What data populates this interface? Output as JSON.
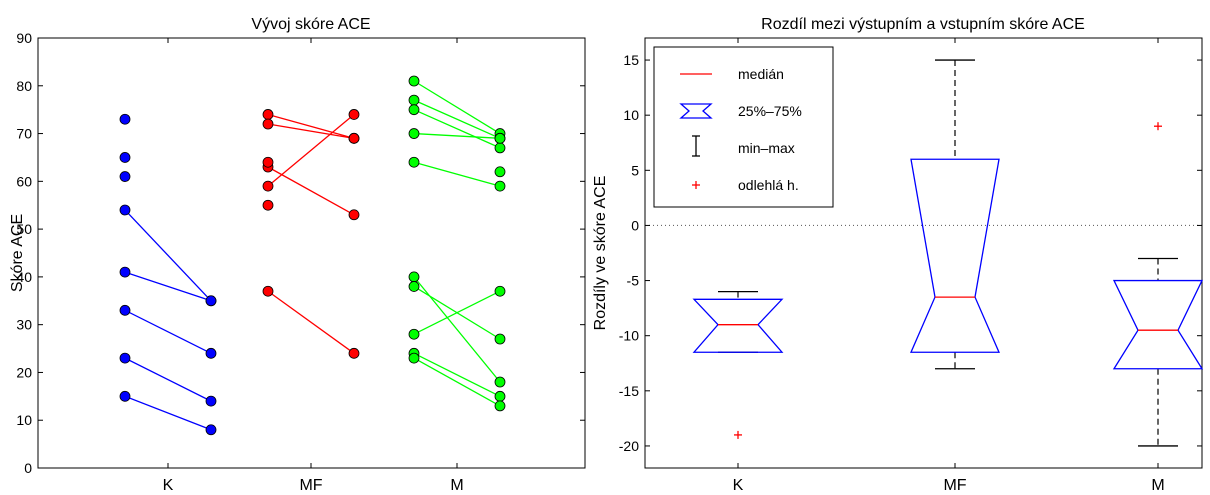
{
  "chart_data": [
    {
      "type": "scatter",
      "title": "Vývoj skóre ACE",
      "ylabel": "Skóre ACE",
      "xlabel": "",
      "ylim": [
        0,
        90
      ],
      "yticks": [
        "0",
        "10",
        "20",
        "30",
        "40",
        "50",
        "60",
        "70",
        "80",
        "90"
      ],
      "categories": [
        "K",
        "MF",
        "M"
      ],
      "series": [
        {
          "group": "K",
          "color": "#0000ff",
          "pairs": [
            [
              54,
              35
            ],
            [
              41,
              35
            ],
            [
              33,
              24
            ],
            [
              23,
              14
            ],
            [
              15,
              8
            ]
          ],
          "unpaired_before": [
            73,
            65,
            61
          ]
        },
        {
          "group": "MF",
          "color": "#ff0000",
          "pairs": [
            [
              74,
              69
            ],
            [
              72,
              69
            ],
            [
              59,
              74
            ],
            [
              63,
              53
            ],
            [
              37,
              24
            ]
          ],
          "unpaired_before": [
            64,
            55
          ],
          "unpaired_after": []
        },
        {
          "group": "M",
          "color": "#00ff00",
          "pairs": [
            [
              81,
              70
            ],
            [
              77,
              69
            ],
            [
              75,
              67
            ],
            [
              70,
              69
            ],
            [
              64,
              59
            ],
            [
              40,
              18
            ],
            [
              38,
              27
            ],
            [
              28,
              37
            ],
            [
              24,
              15
            ],
            [
              23,
              13
            ]
          ],
          "unpaired_after": [
            62
          ]
        }
      ]
    },
    {
      "type": "box",
      "title": "Rozdíl mezi výstupním a vstupním skóre ACE",
      "ylabel": "Rozdíly ve skóre ACE",
      "xlabel": "",
      "ylim": [
        -22,
        17
      ],
      "yticks": [
        "15",
        "10",
        "5",
        "0",
        "-5",
        "-10",
        "-15",
        "-20"
      ],
      "categories": [
        "K",
        "MF",
        "M"
      ],
      "boxes": [
        {
          "name": "K",
          "min": -11.5,
          "q1": -11.5,
          "median": -9,
          "q3": -6.7,
          "max": -6,
          "outliers": [
            -19
          ]
        },
        {
          "name": "MF",
          "min": -13,
          "q1": -11.5,
          "median": -6.5,
          "q3": 6,
          "max": 15,
          "outliers": []
        },
        {
          "name": "M",
          "min": -20,
          "q1": -13,
          "median": -9.5,
          "q3": -5,
          "max": -3,
          "outliers": [
            9
          ]
        }
      ],
      "reference_line": 0,
      "legend": {
        "placement": "top-left",
        "items": [
          {
            "label": "medián",
            "symbol": "median-line"
          },
          {
            "label": "25%–75%",
            "symbol": "notch-box"
          },
          {
            "label": "min–max",
            "symbol": "whisker"
          },
          {
            "label": "odlehlá h.",
            "symbol": "outlier-plus"
          }
        ]
      },
      "colors": {
        "box": "#0000ff",
        "median": "#ff0000",
        "whisker": "#000000",
        "outlier": "#ff0000"
      }
    }
  ]
}
